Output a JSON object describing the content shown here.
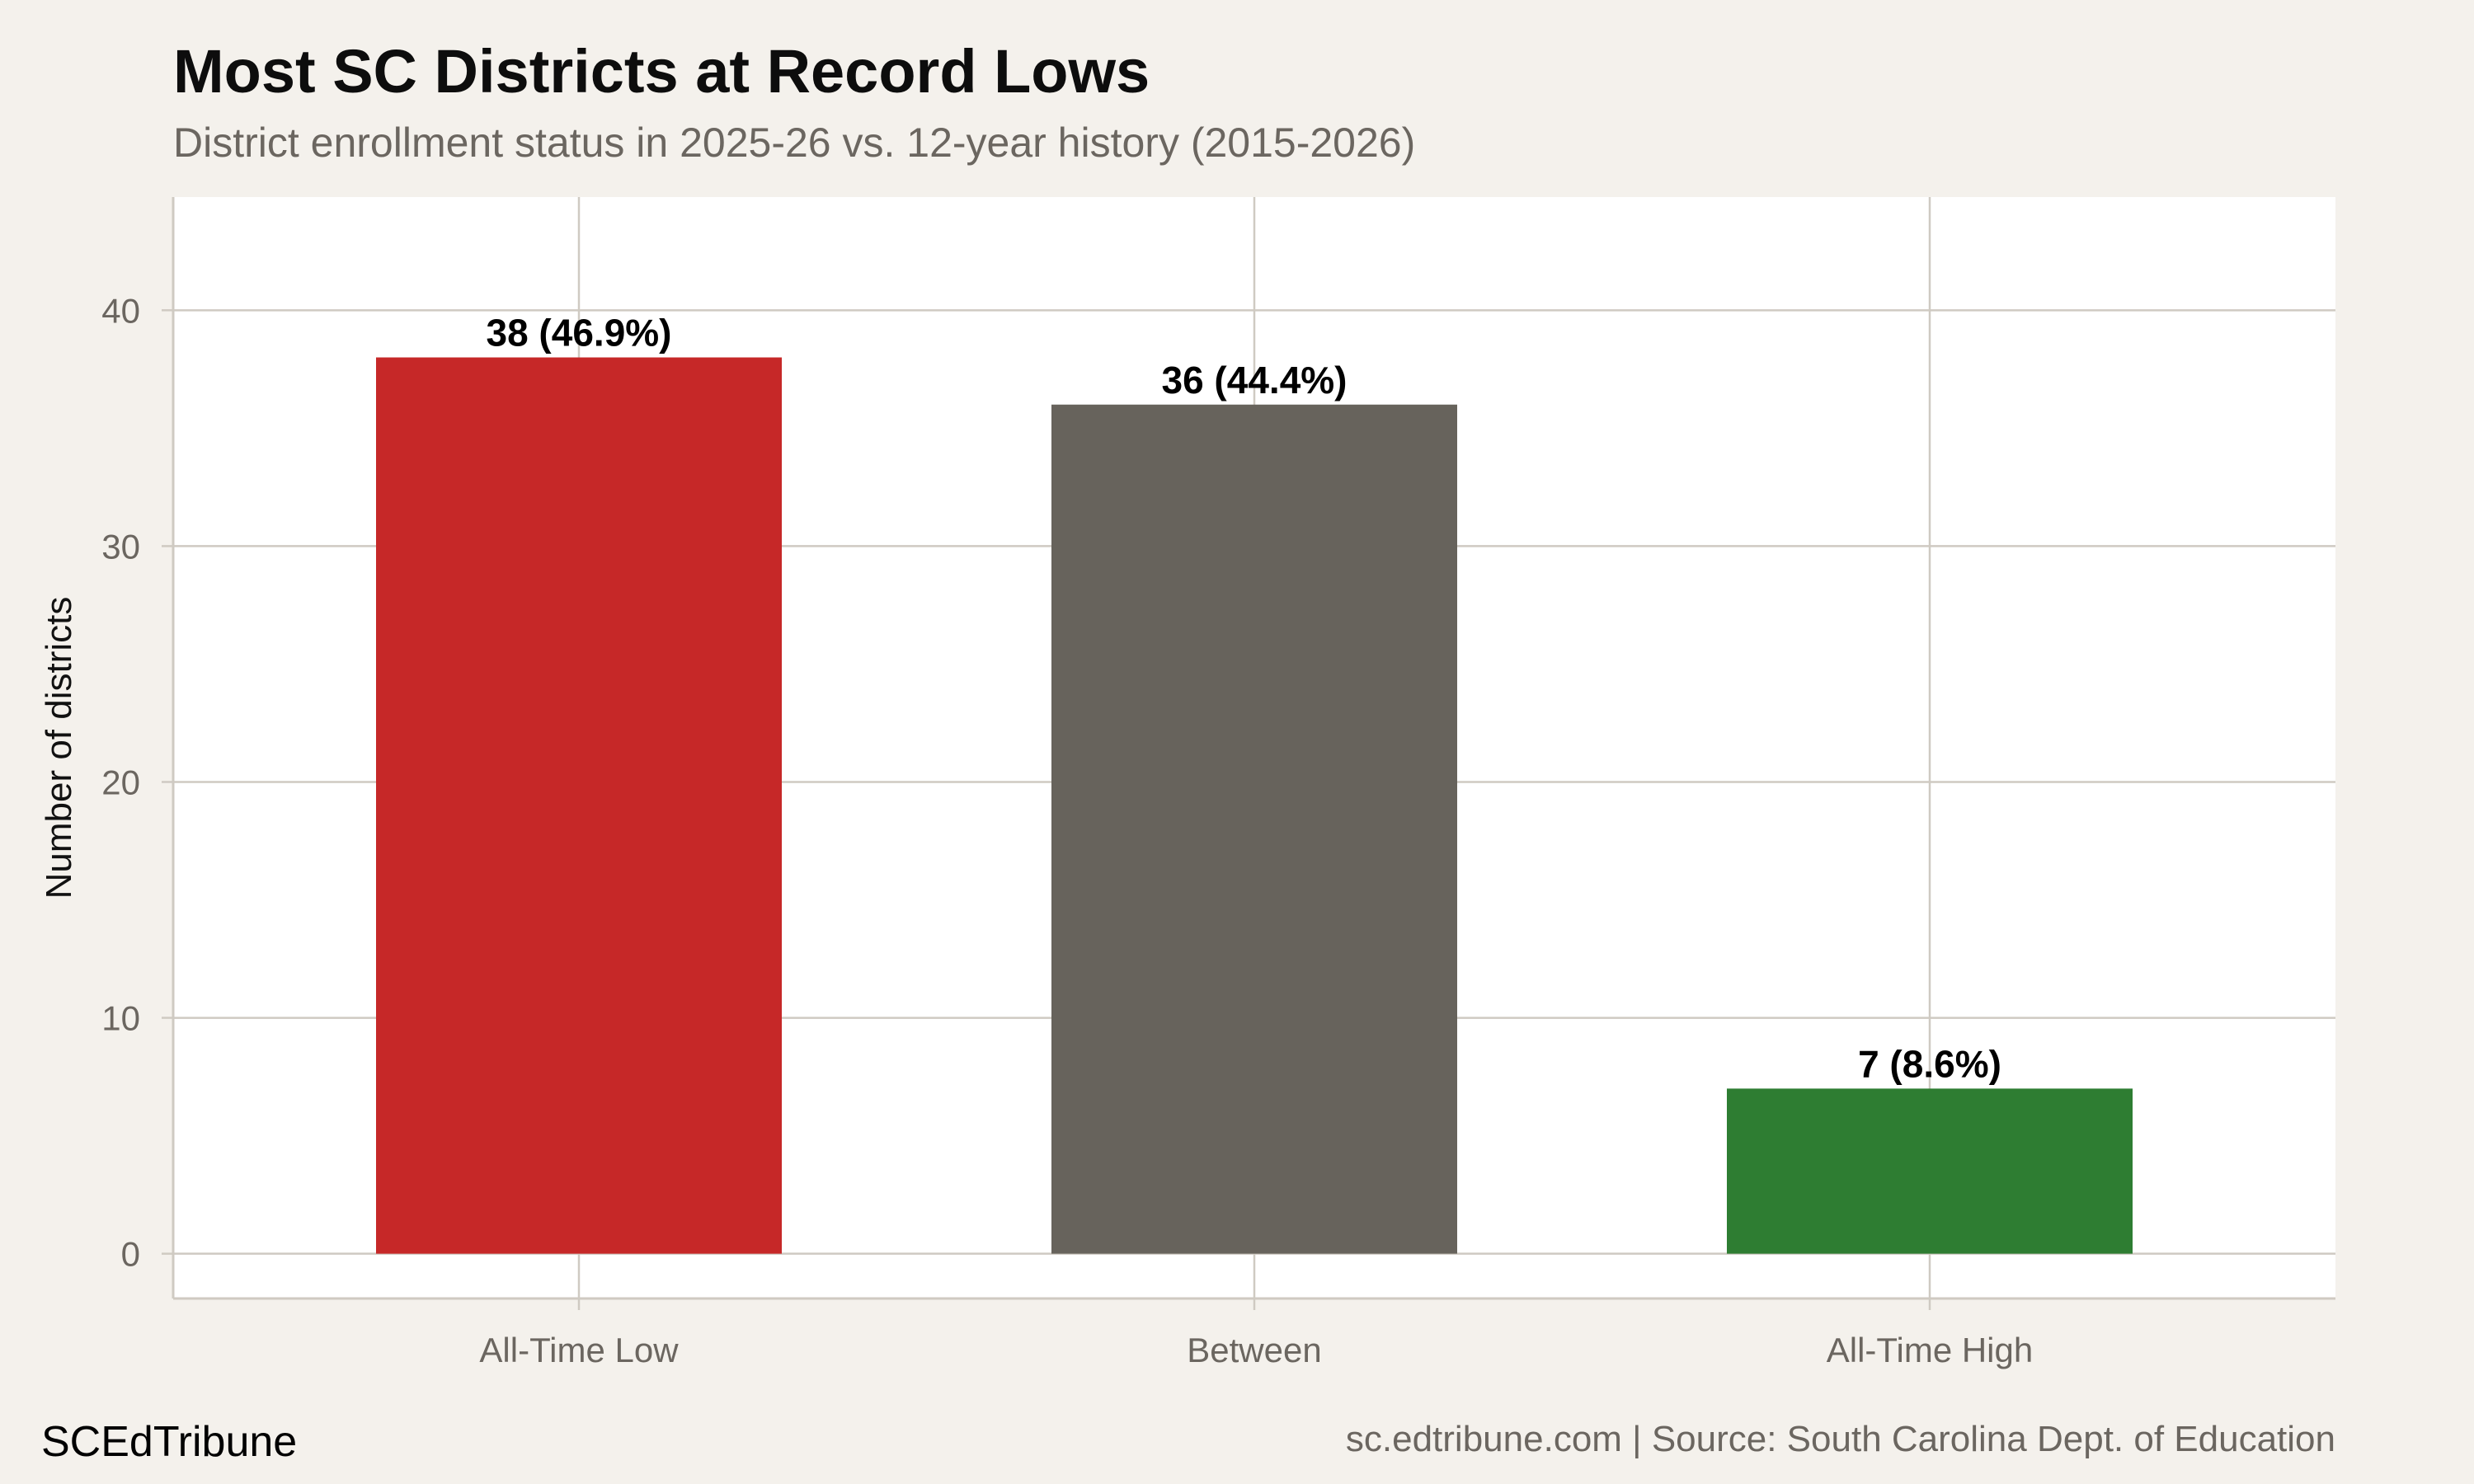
{
  "chart_data": {
    "type": "bar",
    "title": "Most SC Districts at Record Lows",
    "subtitle": "District enrollment status in 2025-26 vs. 12-year history (2015-2026)",
    "xlabel": "",
    "ylabel": "Number of districts",
    "categories": [
      "All-Time Low",
      "Between",
      "All-Time High"
    ],
    "values": [
      38,
      36,
      7
    ],
    "data_labels": [
      "38 (46.9%)",
      "36 (44.4%)",
      "7 (8.6%)"
    ],
    "colors": [
      "#C62828",
      "#67635C",
      "#2E7D32"
    ],
    "ylim": [
      -1.9,
      44.8
    ],
    "yticks": [
      0,
      10,
      20,
      30,
      40
    ],
    "ytick_labels": [
      "0",
      "10",
      "20",
      "30",
      "40"
    ],
    "grid": true,
    "legend": "none"
  },
  "footer": {
    "brand": "SCEdTribune",
    "source": "sc.edtribune.com | Source: South Carolina Dept. of Education"
  },
  "theme": {
    "background": "#F4F1EC",
    "panel": "#FFFFFF",
    "grid": "#CFCAC2",
    "text_muted": "#6B6660"
  }
}
